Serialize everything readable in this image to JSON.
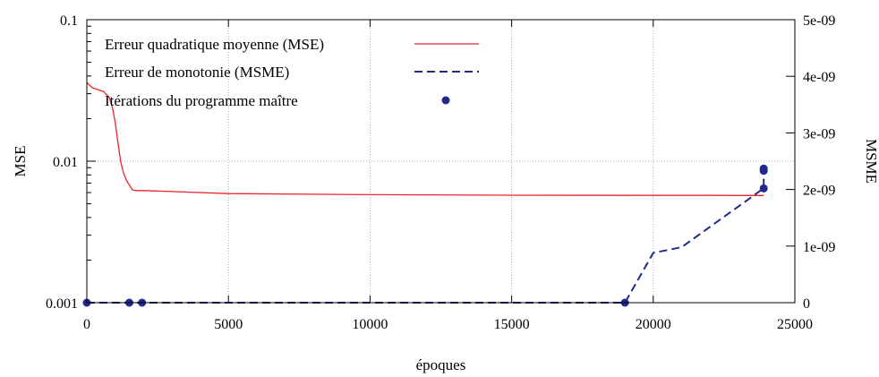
{
  "chart_data": {
    "type": "line",
    "xlabel": "époques",
    "ylabel_left": "MSE",
    "ylabel_right": "MSME",
    "xlim": [
      0,
      25000
    ],
    "ylim_left": [
      0.001,
      0.1
    ],
    "ylim_right": [
      0,
      5e-09
    ],
    "log_scale_left": true,
    "grid": true,
    "legend_position": "top-left",
    "x_ticks": [
      {
        "value": 0,
        "label": "0"
      },
      {
        "value": 5000,
        "label": "5000"
      },
      {
        "value": 10000,
        "label": "10000"
      },
      {
        "value": 15000,
        "label": "15000"
      },
      {
        "value": 20000,
        "label": "20000"
      },
      {
        "value": 25000,
        "label": "25000"
      }
    ],
    "y_ticks_left": [
      {
        "value": 0.001,
        "label": "0.001"
      },
      {
        "value": 0.01,
        "label": "0.01"
      },
      {
        "value": 0.1,
        "label": "0.1"
      }
    ],
    "y_ticks_right": [
      {
        "value": 0,
        "label": "0"
      },
      {
        "value": 1e-09,
        "label": "1e-09"
      },
      {
        "value": 2e-09,
        "label": "2e-09"
      },
      {
        "value": 3e-09,
        "label": "3e-09"
      },
      {
        "value": 4e-09,
        "label": "4e-09"
      },
      {
        "value": 5e-09,
        "label": "5e-09"
      }
    ],
    "series": [
      {
        "name": "Erreur quadratique moyenne (MSE)",
        "axis": "left",
        "style": "solid",
        "color": "#e8262d",
        "x": [
          0,
          200,
          400,
          600,
          800,
          900,
          1000,
          1100,
          1200,
          1300,
          1400,
          1500,
          1600,
          1700,
          1800,
          1900,
          2000,
          3000,
          5000,
          10000,
          15000,
          20000,
          22000,
          23900
        ],
        "y": [
          0.036,
          0.033,
          0.032,
          0.031,
          0.028,
          0.024,
          0.019,
          0.0135,
          0.0098,
          0.0082,
          0.0073,
          0.0068,
          0.0063,
          0.0062,
          0.0062,
          0.0062,
          0.0062,
          0.0061,
          0.0059,
          0.0058,
          0.00575,
          0.00573,
          0.00573,
          0.00572
        ]
      },
      {
        "name": "Erreur de monotonie (MSME)",
        "axis": "right",
        "style": "dashed",
        "color": "#1f2a8a",
        "x": [
          0,
          19000,
          20000,
          21000,
          23900,
          23900
        ],
        "y": [
          0,
          0,
          8.8e-10,
          9.8e-10,
          2.02e-09,
          2.37e-09
        ]
      },
      {
        "name": "Itérations du programme maître",
        "axis": "right",
        "style": "points",
        "color": "#1f2a8a",
        "x": [
          0,
          1500,
          1950,
          19000,
          23900,
          23900,
          23900
        ],
        "y": [
          0,
          0,
          0,
          0,
          2.02e-09,
          2.33e-09,
          2.37e-09
        ]
      }
    ]
  }
}
